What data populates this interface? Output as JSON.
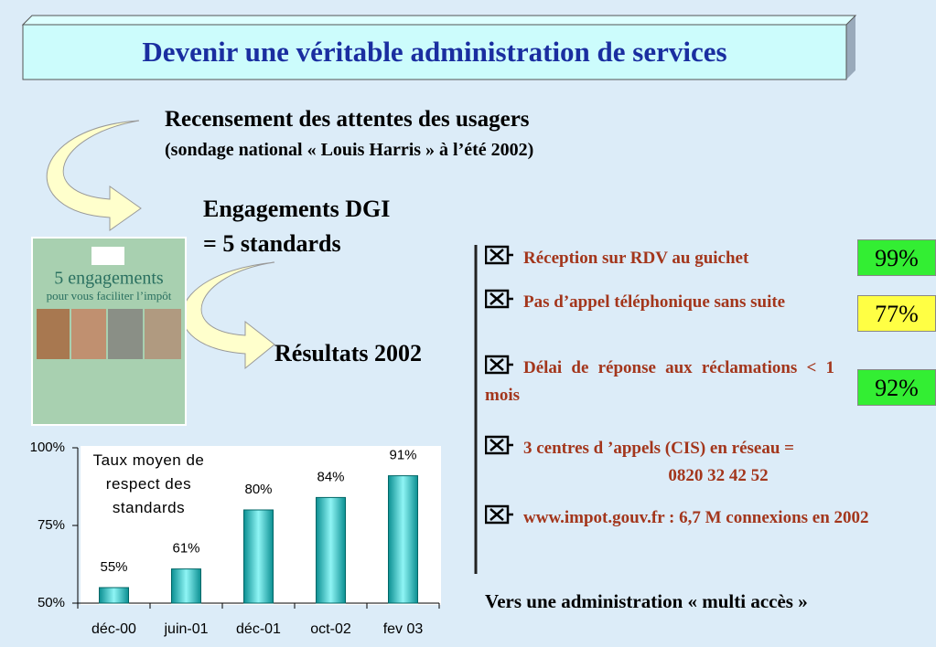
{
  "title": "Devenir une véritable administration de services",
  "survey": {
    "heading": "Recensement des attentes des usagers",
    "note": "(sondage national « Louis Harris » à l’été 2002)"
  },
  "engagements": {
    "line1": "Engagements DGI",
    "line2": "= 5 standards"
  },
  "results": "Résultats 2002",
  "poster": {
    "title": "5 engagements",
    "subtitle": "pour vous faciliter l’impôt"
  },
  "standards": [
    {
      "text": "Réception sur RDV au guichet",
      "score": "99%",
      "score_color": "#33ee33"
    },
    {
      "text": "Pas d’appel téléphonique sans suite",
      "score": "77%",
      "score_color": "#ffff44"
    },
    {
      "text": "Délai de réponse aux réclamations < 1 mois",
      "score": "92%",
      "score_color": "#33ee33"
    },
    {
      "text": "3 centres d ’appels (CIS) en réseau =",
      "detail": "0820 32 42 52"
    },
    {
      "text": "www.impot.gouv.fr : 6,7 M connexions en 2002"
    }
  ],
  "conclusion": "Vers une administration « multi accès »",
  "chart_data": {
    "type": "bar",
    "title": "Taux moyen de respect des standards",
    "categories": [
      "déc-00",
      "juin-01",
      "déc-01",
      "oct-02",
      "fev 03"
    ],
    "values": [
      55,
      61,
      80,
      84,
      91
    ],
    "value_labels": [
      "55%",
      "61%",
      "80%",
      "84%",
      "91%"
    ],
    "color": "#18b0b0",
    "ylim": [
      50,
      100
    ],
    "yticks": [
      {
        "value": 50,
        "label": "50%"
      },
      {
        "value": 75,
        "label": "75%"
      },
      {
        "value": 100,
        "label": "100%"
      }
    ]
  }
}
